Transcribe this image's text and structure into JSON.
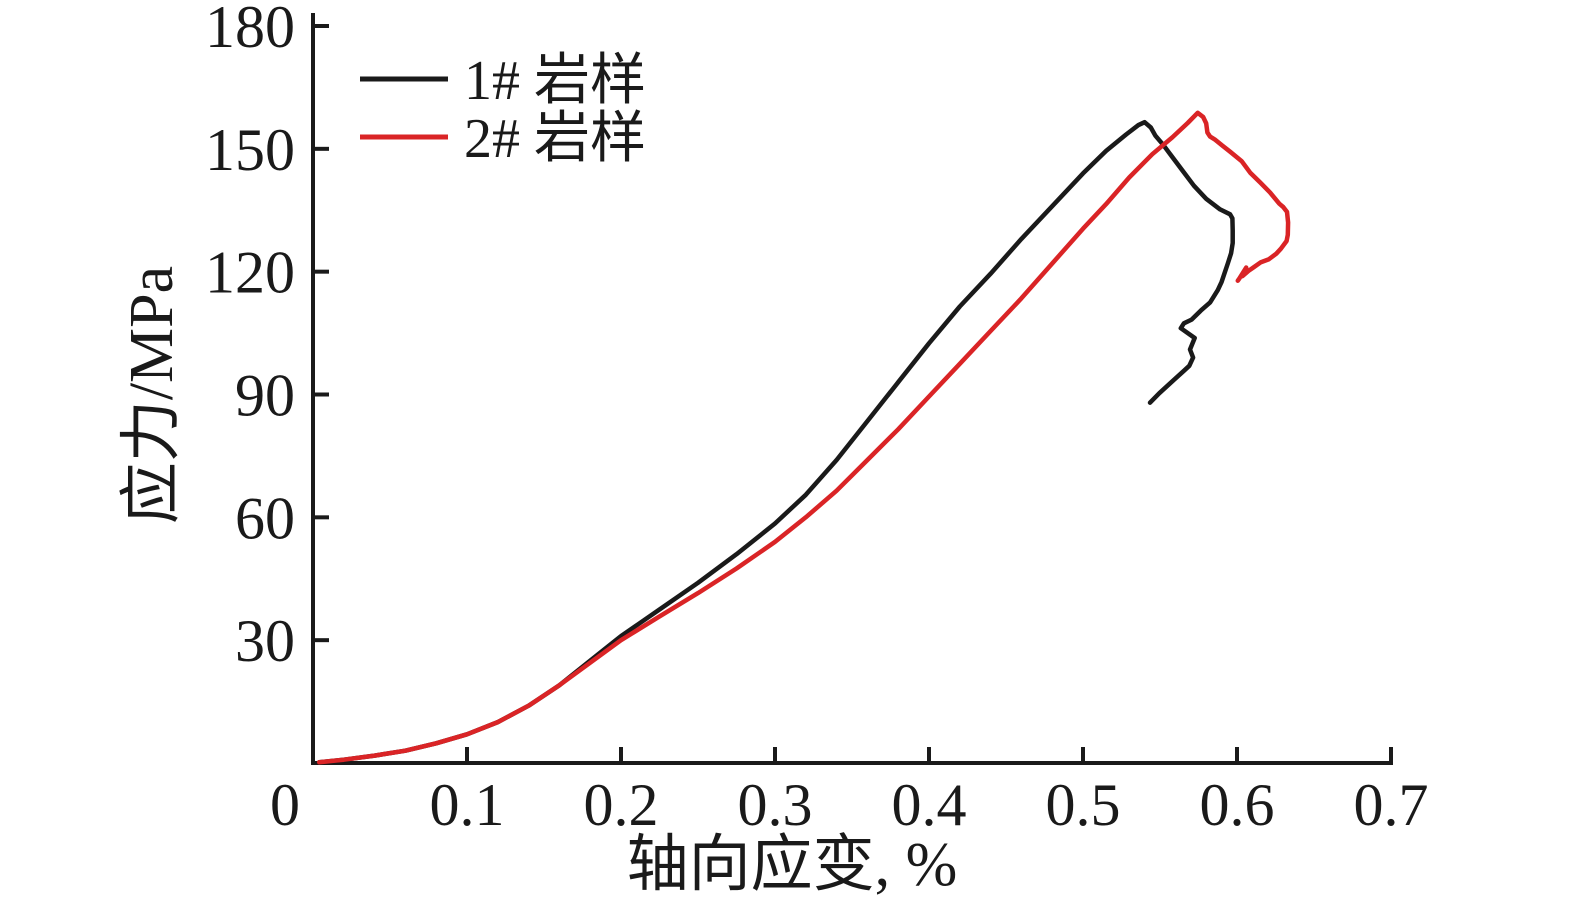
{
  "figure": {
    "background": "#ffffff"
  },
  "chart_data": {
    "type": "line",
    "title": "",
    "xlabel": "轴向应变, %",
    "ylabel": "应力/MPa",
    "xlim": [
      0,
      0.7
    ],
    "ylim": [
      0,
      180
    ],
    "grid": false,
    "legend_position": "top-left",
    "axis_color": "#1a1a1a",
    "xtick_values": [
      0,
      0.1,
      0.2,
      0.3,
      0.4,
      0.5,
      0.6,
      0.7
    ],
    "xtick_labels": [
      "0",
      "0.1",
      "0.2",
      "0.3",
      "0.4",
      "0.5",
      "0.6",
      "0.7"
    ],
    "ytick_values": [
      30,
      60,
      90,
      120,
      150,
      180
    ],
    "ytick_labels": [
      "30",
      "60",
      "90",
      "120",
      "150",
      "180"
    ],
    "series": [
      {
        "name": "1# 岩样",
        "color": "#1a1a1a",
        "peak_stress_mpa": 156.5,
        "peak_strain_pct": 0.54,
        "points": [
          [
            0.004,
            0.2
          ],
          [
            0.02,
            0.8
          ],
          [
            0.04,
            1.8
          ],
          [
            0.06,
            3
          ],
          [
            0.08,
            4.8
          ],
          [
            0.1,
            7
          ],
          [
            0.12,
            10
          ],
          [
            0.14,
            14
          ],
          [
            0.16,
            19
          ],
          [
            0.18,
            25
          ],
          [
            0.2,
            31
          ],
          [
            0.225,
            37.5
          ],
          [
            0.25,
            44
          ],
          [
            0.275,
            51
          ],
          [
            0.3,
            58.5
          ],
          [
            0.32,
            65.5
          ],
          [
            0.34,
            74
          ],
          [
            0.36,
            83.5
          ],
          [
            0.38,
            93
          ],
          [
            0.4,
            102.5
          ],
          [
            0.42,
            111.5
          ],
          [
            0.44,
            119.5
          ],
          [
            0.46,
            128
          ],
          [
            0.48,
            136
          ],
          [
            0.5,
            144
          ],
          [
            0.515,
            149.5
          ],
          [
            0.528,
            153.5
          ],
          [
            0.536,
            155.8
          ],
          [
            0.54,
            156.5
          ],
          [
            0.544,
            155.2
          ],
          [
            0.547,
            153.2
          ],
          [
            0.552,
            151
          ],
          [
            0.558,
            148
          ],
          [
            0.565,
            144.5
          ],
          [
            0.572,
            141
          ],
          [
            0.58,
            137.8
          ],
          [
            0.589,
            135.2
          ],
          [
            0.5955,
            134
          ],
          [
            0.597,
            133
          ],
          [
            0.5972,
            130
          ],
          [
            0.5972,
            127
          ],
          [
            0.5962,
            124.5
          ],
          [
            0.594,
            122
          ],
          [
            0.59,
            117.5
          ],
          [
            0.5875,
            115.5
          ],
          [
            0.5825,
            112.5
          ],
          [
            0.5765,
            110.5
          ],
          [
            0.5705,
            108.3
          ],
          [
            0.5655,
            107.4
          ],
          [
            0.5635,
            106.2
          ],
          [
            0.5725,
            103.8
          ],
          [
            0.5695,
            101
          ],
          [
            0.5715,
            99
          ],
          [
            0.569,
            97
          ],
          [
            0.5655,
            95.8
          ],
          [
            0.5565,
            92.7
          ],
          [
            0.5495,
            90.3
          ],
          [
            0.5435,
            88
          ]
        ]
      },
      {
        "name": "2# 岩样",
        "color": "#da2426",
        "peak_stress_mpa": 158.8,
        "peak_strain_pct": 0.575,
        "points": [
          [
            0.004,
            0.2
          ],
          [
            0.02,
            0.8
          ],
          [
            0.04,
            1.8
          ],
          [
            0.06,
            3
          ],
          [
            0.08,
            4.8
          ],
          [
            0.1,
            7
          ],
          [
            0.12,
            10
          ],
          [
            0.14,
            14
          ],
          [
            0.16,
            19
          ],
          [
            0.18,
            24.5
          ],
          [
            0.2,
            30
          ],
          [
            0.225,
            35.8
          ],
          [
            0.25,
            41.5
          ],
          [
            0.275,
            47.5
          ],
          [
            0.3,
            54
          ],
          [
            0.32,
            60
          ],
          [
            0.34,
            66.5
          ],
          [
            0.36,
            74
          ],
          [
            0.38,
            81.5
          ],
          [
            0.4,
            89.5
          ],
          [
            0.42,
            97.5
          ],
          [
            0.44,
            105.5
          ],
          [
            0.46,
            113.5
          ],
          [
            0.48,
            122
          ],
          [
            0.5,
            130.5
          ],
          [
            0.515,
            136.5
          ],
          [
            0.53,
            143
          ],
          [
            0.545,
            148.7
          ],
          [
            0.558,
            152.8
          ],
          [
            0.568,
            156.3
          ],
          [
            0.5745,
            158.8
          ],
          [
            0.578,
            157.8
          ],
          [
            0.58,
            156.2
          ],
          [
            0.5808,
            154
          ],
          [
            0.5825,
            153
          ],
          [
            0.5855,
            152.3
          ],
          [
            0.5905,
            150.8
          ],
          [
            0.5955,
            149.3
          ],
          [
            0.603,
            147
          ],
          [
            0.6085,
            144.2
          ],
          [
            0.615,
            141.8
          ],
          [
            0.6215,
            139.3
          ],
          [
            0.6275,
            136.6
          ],
          [
            0.63,
            135.8
          ],
          [
            0.6325,
            134.6
          ],
          [
            0.6332,
            132
          ],
          [
            0.633,
            129
          ],
          [
            0.6322,
            127.5
          ],
          [
            0.6285,
            125.6
          ],
          [
            0.6255,
            124.4
          ],
          [
            0.6205,
            123
          ],
          [
            0.6155,
            122.3
          ],
          [
            0.6105,
            121
          ],
          [
            0.6075,
            120.2
          ],
          [
            0.6035,
            118.9
          ],
          [
            0.606,
            121
          ],
          [
            0.6015,
            118.3
          ],
          [
            0.6005,
            117.8
          ]
        ]
      }
    ]
  }
}
